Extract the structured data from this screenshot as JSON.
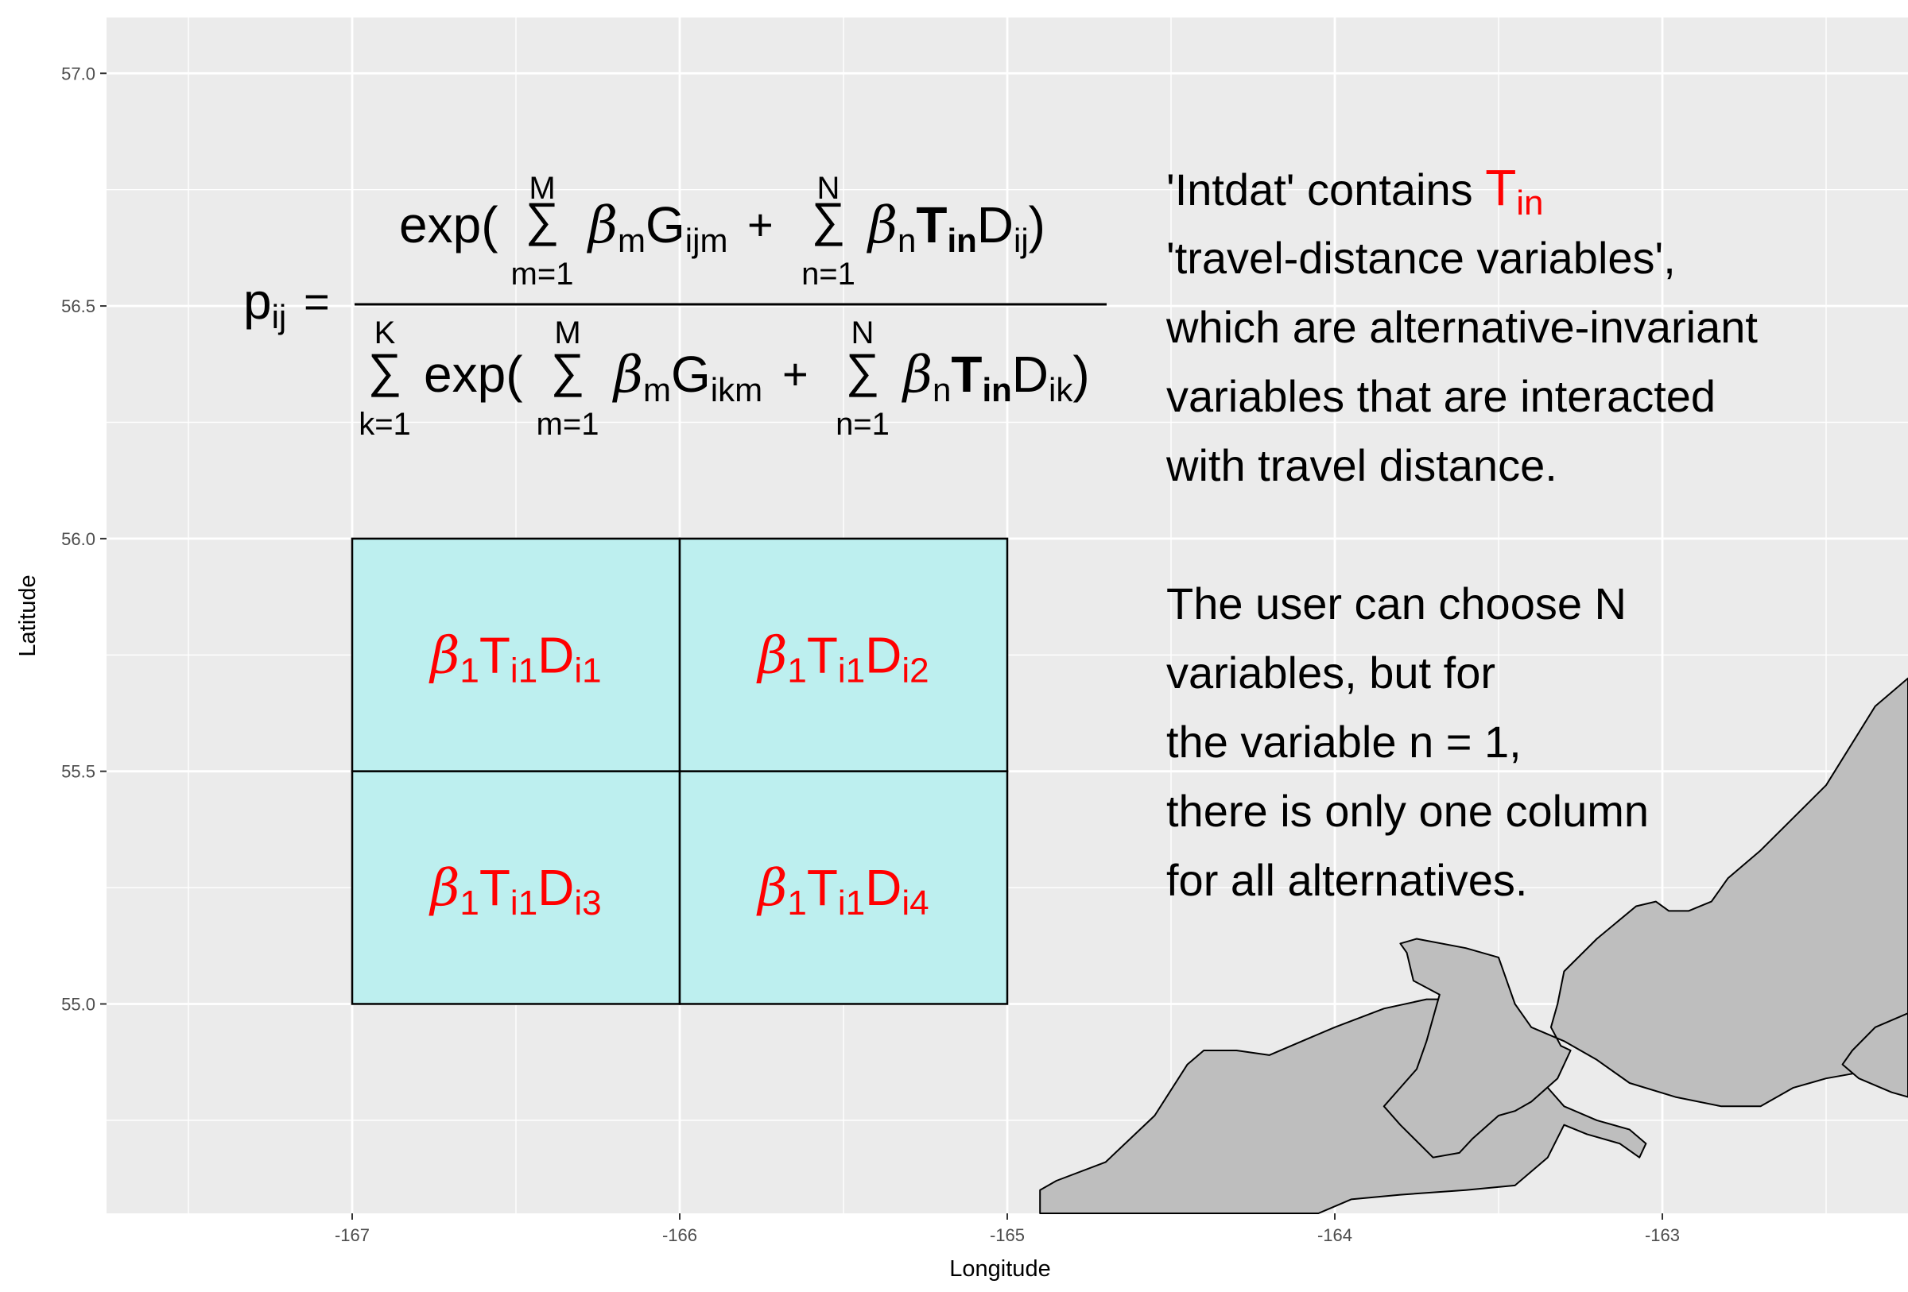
{
  "chart_data": {
    "type": "map",
    "xlabel": "Longitude",
    "ylabel": "Latitude",
    "xlim": [
      -167.75,
      -162.25
    ],
    "ylim": [
      54.55,
      57.12
    ],
    "x_ticks": [
      -167,
      -166,
      -165,
      -164,
      -163
    ],
    "y_ticks": [
      55.0,
      55.5,
      56.0,
      56.5,
      57.0
    ],
    "x_tick_labels": [
      "-167",
      "-166",
      "-165",
      "-164",
      "-163"
    ],
    "y_tick_labels": [
      "55.0",
      "55.5",
      "56.0",
      "56.5",
      "57.0"
    ],
    "grid": true,
    "grid_cells": [
      {
        "id": 1,
        "x": [
          -167,
          -166
        ],
        "y": [
          55.5,
          56.0
        ],
        "label": {
          "coef": "1",
          "var": "i1",
          "dist": "i1"
        }
      },
      {
        "id": 2,
        "x": [
          -166,
          -165
        ],
        "y": [
          55.5,
          56.0
        ],
        "label": {
          "coef": "1",
          "var": "i1",
          "dist": "i2"
        }
      },
      {
        "id": 3,
        "x": [
          -167,
          -166
        ],
        "y": [
          55.0,
          55.5
        ],
        "label": {
          "coef": "1",
          "var": "i1",
          "dist": "i3"
        }
      },
      {
        "id": 4,
        "x": [
          -166,
          -165
        ],
        "y": [
          55.0,
          55.5
        ],
        "label": {
          "coef": "1",
          "var": "i1",
          "dist": "i4"
        }
      }
    ],
    "cell_fill": "#bdefef",
    "land_fill": "#bebebe",
    "land": [
      [
        [
          -164.9,
          54.55
        ],
        [
          -164.9,
          54.6
        ],
        [
          -164.85,
          54.62
        ],
        [
          -164.7,
          54.66
        ],
        [
          -164.55,
          54.76
        ],
        [
          -164.45,
          54.87
        ],
        [
          -164.4,
          54.9
        ],
        [
          -164.3,
          54.9
        ],
        [
          -164.2,
          54.89
        ],
        [
          -164.1,
          54.92
        ],
        [
          -164.0,
          54.95
        ],
        [
          -163.85,
          54.99
        ],
        [
          -163.72,
          55.01
        ],
        [
          -163.53,
          55.01
        ],
        [
          -163.47,
          54.98
        ],
        [
          -163.4,
          54.9
        ],
        [
          -163.35,
          54.82
        ],
        [
          -163.3,
          54.78
        ],
        [
          -163.2,
          54.75
        ],
        [
          -163.1,
          54.73
        ],
        [
          -163.05,
          54.7
        ],
        [
          -163.07,
          54.67
        ],
        [
          -163.13,
          54.7
        ],
        [
          -163.23,
          54.72
        ],
        [
          -163.3,
          54.74
        ],
        [
          -163.35,
          54.67
        ],
        [
          -163.45,
          54.61
        ],
        [
          -163.6,
          54.6
        ],
        [
          -163.8,
          54.59
        ],
        [
          -163.95,
          54.58
        ],
        [
          -164.05,
          54.55
        ],
        [
          -164.2,
          54.55
        ]
      ],
      [
        [
          -162.25,
          55.7
        ],
        [
          -162.35,
          55.64
        ],
        [
          -162.5,
          55.47
        ],
        [
          -162.7,
          55.33
        ],
        [
          -162.8,
          55.27
        ],
        [
          -162.85,
          55.22
        ],
        [
          -162.92,
          55.2
        ],
        [
          -162.98,
          55.2
        ],
        [
          -163.02,
          55.22
        ],
        [
          -163.08,
          55.21
        ],
        [
          -163.2,
          55.14
        ],
        [
          -163.3,
          55.07
        ],
        [
          -163.32,
          55.0
        ],
        [
          -163.34,
          54.95
        ],
        [
          -163.31,
          54.91
        ],
        [
          -163.28,
          54.9
        ],
        [
          -163.32,
          54.84
        ],
        [
          -163.4,
          54.79
        ],
        [
          -163.45,
          54.77
        ],
        [
          -163.5,
          54.76
        ],
        [
          -163.58,
          54.71
        ],
        [
          -163.62,
          54.68
        ],
        [
          -163.7,
          54.67
        ],
        [
          -163.8,
          54.74
        ],
        [
          -163.85,
          54.78
        ],
        [
          -163.8,
          54.82
        ],
        [
          -163.75,
          54.86
        ],
        [
          -163.72,
          54.92
        ],
        [
          -163.68,
          55.02
        ],
        [
          -163.76,
          55.05
        ],
        [
          -163.78,
          55.11
        ],
        [
          -163.8,
          55.13
        ],
        [
          -163.75,
          55.14
        ],
        [
          -163.6,
          55.12
        ],
        [
          -163.5,
          55.1
        ],
        [
          -163.45,
          55.0
        ],
        [
          -163.4,
          54.95
        ],
        [
          -163.3,
          54.92
        ],
        [
          -163.2,
          54.88
        ],
        [
          -163.1,
          54.83
        ],
        [
          -162.96,
          54.8
        ],
        [
          -162.82,
          54.78
        ],
        [
          -162.7,
          54.78
        ],
        [
          -162.6,
          54.82
        ],
        [
          -162.5,
          54.84
        ],
        [
          -162.42,
          54.85
        ],
        [
          -162.35,
          54.88
        ],
        [
          -162.25,
          54.9
        ]
      ],
      [
        [
          -162.25,
          54.98
        ],
        [
          -162.35,
          54.95
        ],
        [
          -162.42,
          54.9
        ],
        [
          -162.45,
          54.87
        ],
        [
          -162.4,
          54.84
        ],
        [
          -162.3,
          54.81
        ],
        [
          -162.25,
          54.8
        ]
      ]
    ],
    "formula": {
      "lhs_base": "p",
      "lhs_sub": "ij",
      "eq": "=",
      "exp": "exp(",
      "close": ")",
      "plus": "+",
      "sigma": "∑",
      "beta": "β",
      "sum_m_top": "M",
      "sum_m_bottom": "m=1",
      "sum_n_top": "N",
      "sum_n_bottom": "n=1",
      "sum_k_top": "K",
      "sum_k_bottom": "k=1",
      "sub_m": "m",
      "sub_n": "n",
      "G": "G",
      "num_G_sub": "ijm",
      "den_G_sub": "ikm",
      "T": "T",
      "T_sub": "in",
      "D": "D",
      "num_D_sub": "ij",
      "den_D_sub": "ik"
    },
    "cell_label_parts": {
      "beta": "β",
      "T": "T",
      "D": "D"
    },
    "annotation": {
      "intro": "'Intdat' contains ",
      "highlight_base": "T",
      "highlight_sub": "in",
      "lines": [
        "'travel-distance variables',",
        "which are alternative-invariant",
        "variables that are interacted",
        "with travel distance.",
        "",
        "The user can choose N",
        "variables, but for",
        "the variable n = 1,",
        "there is only one column",
        "for all alternatives."
      ]
    }
  }
}
